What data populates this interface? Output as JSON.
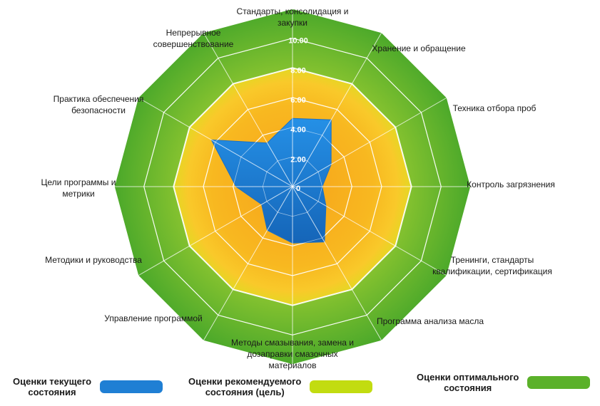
{
  "chart_data": {
    "type": "radar",
    "axes": [
      "Стандарты, консолидация и закупки",
      "Хранение и обращение",
      "Техника отбора проб",
      "Контроль загрязнения",
      "Тренинги, стандарты квалификации, сертификация",
      "Программа анализа масла",
      "Методы смазывания, замена и дозаправки смазочных материалов",
      "Управление программой",
      "Методики и руководства",
      "Цели программы и метрики",
      "Практика обеспечения безопасности",
      "Непрерывное совершенствование"
    ],
    "ticks": [
      "0",
      "2.00",
      "4.00",
      "6.00",
      "8.00",
      "10.00"
    ],
    "rmax": 12,
    "series": [
      {
        "name": "Оценки текущего состояния",
        "color": "#1f7fd4",
        "values": [
          4.6,
          5.2,
          3.0,
          2.0,
          2.6,
          4.3,
          3.8,
          3.4,
          2.4,
          3.8,
          6.3,
          3.4
        ]
      },
      {
        "name": "Оценки рекомендуемого состояния (цель)",
        "color": "#c2dc10",
        "values": [
          8,
          8,
          8,
          8,
          8,
          8,
          8,
          8,
          8,
          8,
          8,
          8
        ]
      },
      {
        "name": "Оценки оптимального состояния",
        "color": "#5bb12a",
        "values": [
          12,
          12,
          12,
          12,
          12,
          12,
          12,
          12,
          12,
          12,
          12,
          12
        ]
      }
    ]
  },
  "legend": [
    {
      "label_1": "Оценки текущего",
      "label_2": "состояния",
      "color": "#1f7fd4"
    },
    {
      "label_1": "Оценки рекомендуемого",
      "label_2": "состояния (цель)",
      "color": "#c2dc10"
    },
    {
      "label_1": "Оценки оптимального",
      "label_2": "состояния",
      "color": "#5bb12a"
    }
  ]
}
